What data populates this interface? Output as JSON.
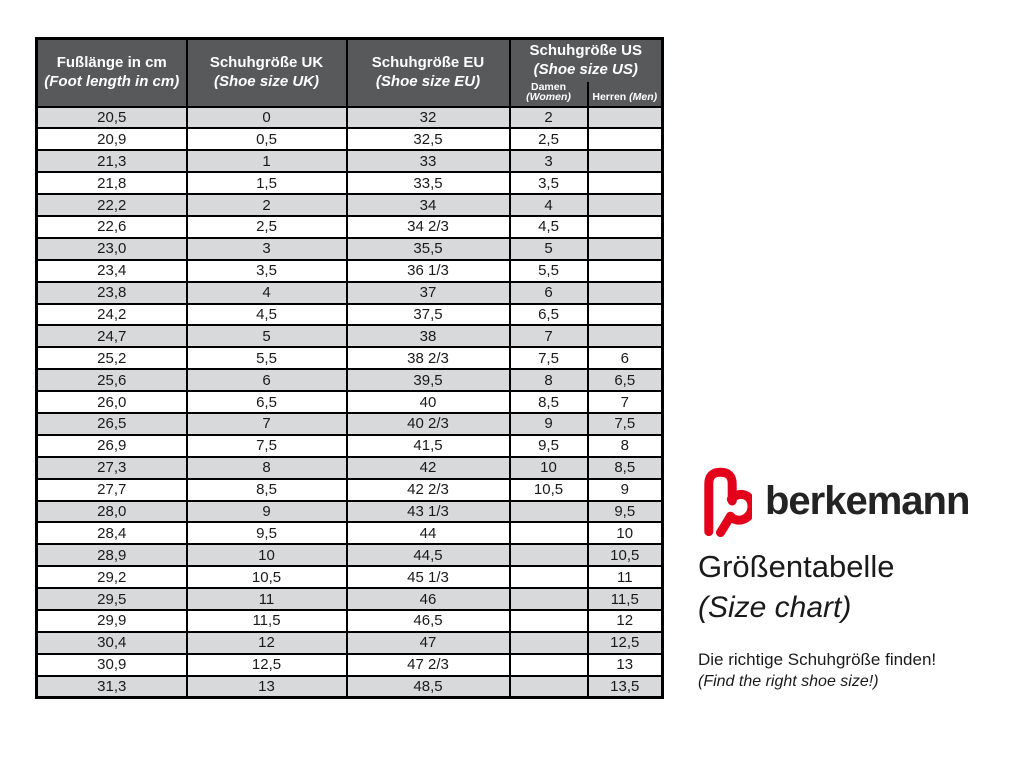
{
  "brand": {
    "wordmark": "berkemann"
  },
  "panel": {
    "title_de": "Größentabelle",
    "title_en": "(Size chart)",
    "tagline_de": "Die richtige Schuhgröße finden!",
    "tagline_en": "(Find the right shoe size!)"
  },
  "table": {
    "columns": [
      {
        "de": "Fußlänge in cm",
        "en": "(Foot length in cm)"
      },
      {
        "de": "Schuhgröße UK",
        "en": "(Shoe size UK)"
      },
      {
        "de": "Schuhgröße EU",
        "en": "(Shoe size EU)"
      },
      {
        "de": "Schuhgröße US",
        "en": "(Shoe size US)"
      }
    ],
    "us_subcolumns": [
      {
        "de": "Damen",
        "en": "(Women)"
      },
      {
        "de": "Herren",
        "en": "(Men)"
      }
    ]
  },
  "colors": {
    "header_bg": "#58595b",
    "row_alt_bg": "#d8d9da",
    "row_bg": "#ffffff",
    "border": "#000000",
    "ink": "#1a1a1a",
    "accent": "#e2001a",
    "wordmark_ink": "#232323"
  },
  "chart_data": {
    "type": "table",
    "title": "Größentabelle (Size chart)",
    "columns": [
      "Fußlänge in cm (Foot length in cm)",
      "Schuhgröße UK (Shoe size UK)",
      "Schuhgröße EU (Shoe size EU)",
      "Schuhgröße US Damen (Women)",
      "Schuhgröße US Herren (Men)"
    ],
    "rows": [
      [
        "20,5",
        "0",
        "32",
        "2",
        ""
      ],
      [
        "20,9",
        "0,5",
        "32,5",
        "2,5",
        ""
      ],
      [
        "21,3",
        "1",
        "33",
        "3",
        ""
      ],
      [
        "21,8",
        "1,5",
        "33,5",
        "3,5",
        ""
      ],
      [
        "22,2",
        "2",
        "34",
        "4",
        ""
      ],
      [
        "22,6",
        "2,5",
        "34 2/3",
        "4,5",
        ""
      ],
      [
        "23,0",
        "3",
        "35,5",
        "5",
        ""
      ],
      [
        "23,4",
        "3,5",
        "36 1/3",
        "5,5",
        ""
      ],
      [
        "23,8",
        "4",
        "37",
        "6",
        ""
      ],
      [
        "24,2",
        "4,5",
        "37,5",
        "6,5",
        ""
      ],
      [
        "24,7",
        "5",
        "38",
        "7",
        ""
      ],
      [
        "25,2",
        "5,5",
        "38 2/3",
        "7,5",
        "6"
      ],
      [
        "25,6",
        "6",
        "39,5",
        "8",
        "6,5"
      ],
      [
        "26,0",
        "6,5",
        "40",
        "8,5",
        "7"
      ],
      [
        "26,5",
        "7",
        "40 2/3",
        "9",
        "7,5"
      ],
      [
        "26,9",
        "7,5",
        "41,5",
        "9,5",
        "8"
      ],
      [
        "27,3",
        "8",
        "42",
        "10",
        "8,5"
      ],
      [
        "27,7",
        "8,5",
        "42 2/3",
        "10,5",
        "9"
      ],
      [
        "28,0",
        "9",
        "43 1/3",
        "",
        "9,5"
      ],
      [
        "28,4",
        "9,5",
        "44",
        "",
        "10"
      ],
      [
        "28,9",
        "10",
        "44,5",
        "",
        "10,5"
      ],
      [
        "29,2",
        "10,5",
        "45 1/3",
        "",
        "11"
      ],
      [
        "29,5",
        "11",
        "46",
        "",
        "11,5"
      ],
      [
        "29,9",
        "11,5",
        "46,5",
        "",
        "12"
      ],
      [
        "30,4",
        "12",
        "47",
        "",
        "12,5"
      ],
      [
        "30,9",
        "12,5",
        "47 2/3",
        "",
        "13"
      ],
      [
        "31,3",
        "13",
        "48,5",
        "",
        "13,5"
      ]
    ]
  }
}
